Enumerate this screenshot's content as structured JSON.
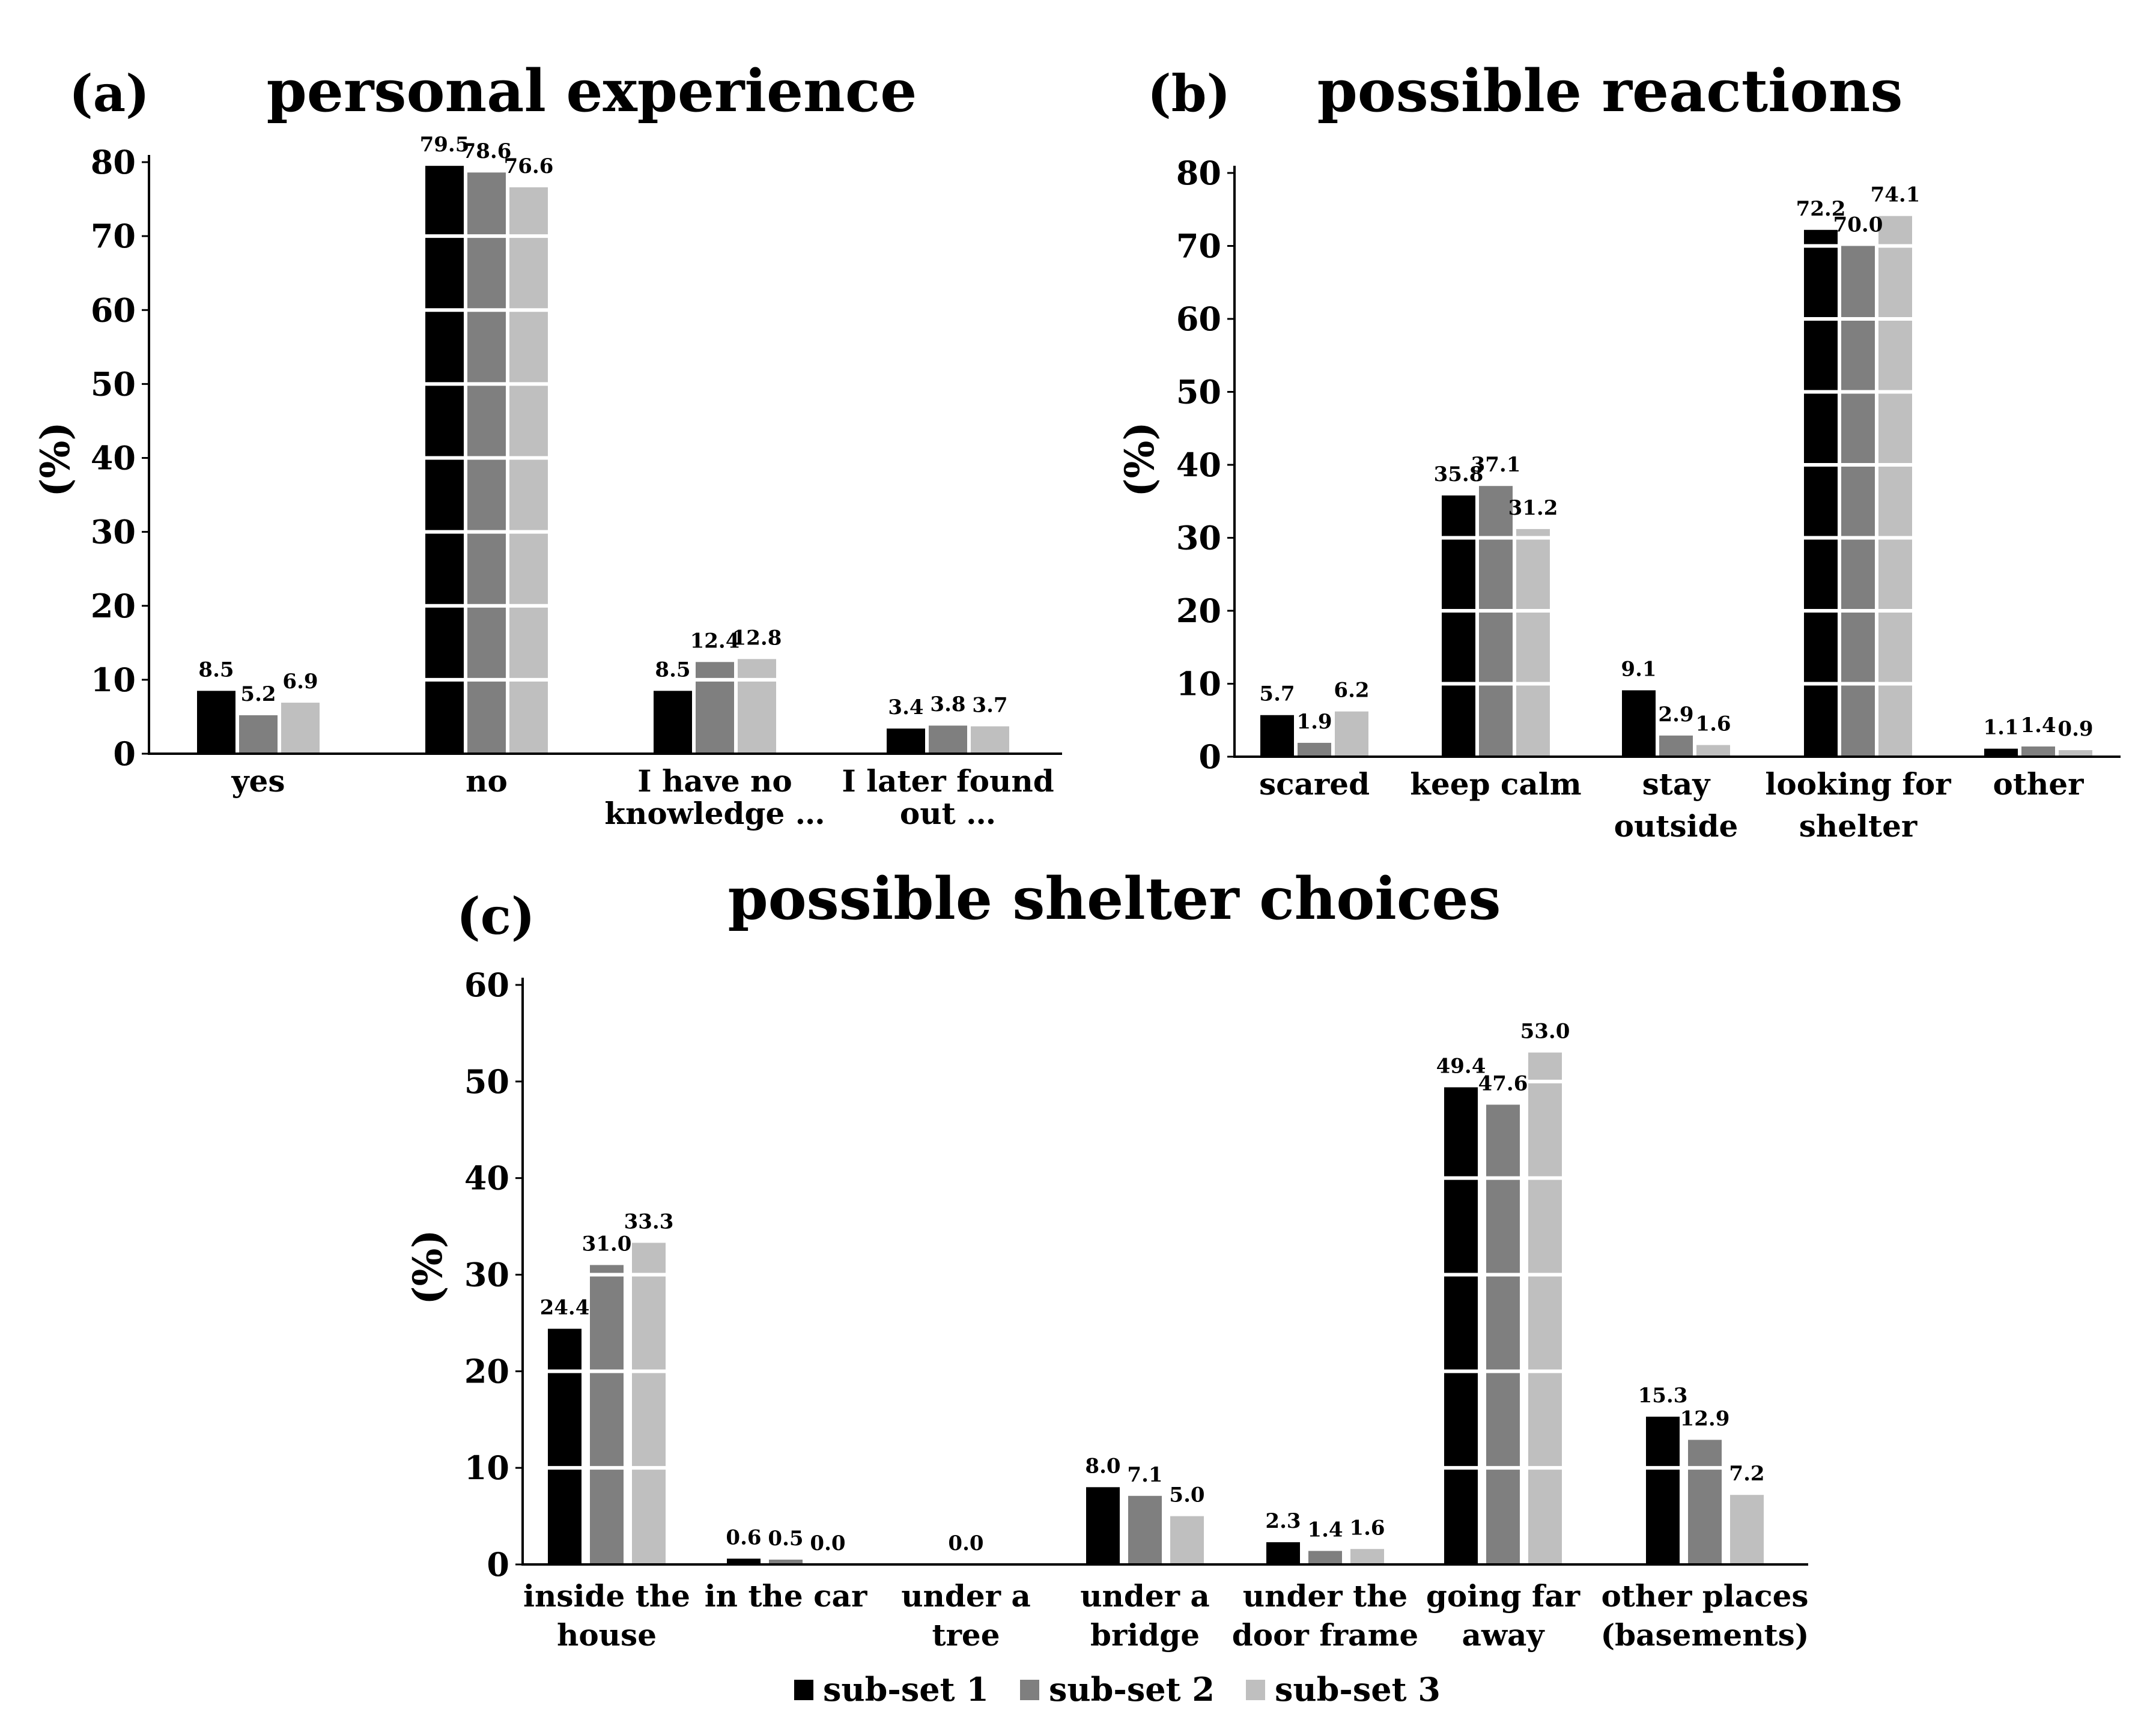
{
  "chart_data": [
    {
      "type": "bar",
      "panel": "(a)",
      "title": "personal experience",
      "ylabel": "(%)",
      "ylim": [
        0,
        80
      ],
      "yticks": [
        "0",
        "10",
        "20",
        "30",
        "40",
        "50",
        "60",
        "70",
        "80"
      ],
      "grid": false,
      "categories": [
        [
          "yes"
        ],
        [
          "no"
        ],
        [
          "I have no",
          "knowledge …"
        ],
        [
          "I later found",
          "out …"
        ]
      ],
      "series": [
        {
          "name": "sub-set 1",
          "color": "#000000",
          "values": [
            8.5,
            79.5,
            8.5,
            3.4
          ],
          "labels": [
            "8.5",
            "79.5",
            "8.5",
            "3.4"
          ]
        },
        {
          "name": "sub-set 2",
          "color": "#7f7f7f",
          "values": [
            5.2,
            78.6,
            12.4,
            3.8
          ],
          "labels": [
            "5.2",
            "78.6",
            "12.4",
            "3.8"
          ]
        },
        {
          "name": "sub-set 3",
          "color": "#bfbfbf",
          "values": [
            6.9,
            76.6,
            12.8,
            3.7
          ],
          "labels": [
            "6.9",
            "76.6",
            "12.8",
            "3.7"
          ]
        }
      ]
    },
    {
      "type": "bar",
      "panel": "(b)",
      "title": "possible reactions",
      "ylabel": "(%)",
      "ylim": [
        0,
        80
      ],
      "yticks": [
        "0",
        "10",
        "20",
        "30",
        "40",
        "50",
        "60",
        "70",
        "80"
      ],
      "grid": false,
      "categories": [
        [
          "scared"
        ],
        [
          "keep calm"
        ],
        [
          "stay",
          "outside"
        ],
        [
          "looking for",
          "shelter"
        ],
        [
          "other"
        ]
      ],
      "series": [
        {
          "name": "sub-set 1",
          "color": "#000000",
          "values": [
            5.7,
            35.8,
            9.1,
            72.2,
            1.1
          ],
          "labels": [
            "5.7",
            "35.8",
            "9.1",
            "72.2",
            "1.1"
          ]
        },
        {
          "name": "sub-set 2",
          "color": "#7f7f7f",
          "values": [
            1.9,
            37.1,
            2.9,
            70.0,
            1.4
          ],
          "labels": [
            "1.9",
            "37.1",
            "2.9",
            "70.0",
            "1.4"
          ]
        },
        {
          "name": "sub-set 3",
          "color": "#bfbfbf",
          "values": [
            6.2,
            31.2,
            1.6,
            74.1,
            0.9
          ],
          "labels": [
            "6.2",
            "31.2",
            "1.6",
            "74.1",
            "0.9"
          ]
        }
      ]
    },
    {
      "type": "bar",
      "panel": "(c)",
      "title": "possible shelter choices",
      "ylabel": "(%)",
      "ylim": [
        0,
        60
      ],
      "yticks": [
        "0",
        "10",
        "20",
        "30",
        "40",
        "50",
        "60"
      ],
      "grid": false,
      "categories": [
        [
          "inside the",
          "house"
        ],
        [
          "in the car"
        ],
        [
          "under a",
          "tree"
        ],
        [
          "under a",
          "bridge"
        ],
        [
          "under the",
          "door frame"
        ],
        [
          "going far",
          "away"
        ],
        [
          "other places",
          "(basements)"
        ]
      ],
      "series": [
        {
          "name": "sub-set 1",
          "color": "#000000",
          "values": [
            24.4,
            0.6,
            null,
            8.0,
            2.3,
            49.4,
            15.3
          ],
          "labels": [
            "24.4",
            "0.6",
            null,
            "8.0",
            "2.3",
            "49.4",
            "15.3"
          ]
        },
        {
          "name": "sub-set 2",
          "color": "#7f7f7f",
          "values": [
            31.0,
            0.5,
            0.0,
            7.1,
            1.4,
            47.6,
            12.9
          ],
          "labels": [
            "31.0",
            "0.5",
            "0.0",
            "7.1",
            "1.4",
            "47.6",
            "12.9"
          ]
        },
        {
          "name": "sub-set 3",
          "color": "#bfbfbf",
          "values": [
            33.3,
            0.0,
            null,
            5.0,
            1.6,
            53.0,
            7.2
          ],
          "labels": [
            "33.3",
            "0.0",
            null,
            "5.0",
            "1.6",
            "53.0",
            "7.2"
          ]
        }
      ]
    }
  ],
  "legend": {
    "placement": "bottom-center",
    "items": [
      {
        "label": "sub-set 1",
        "color": "#000000"
      },
      {
        "label": "sub-set 2",
        "color": "#7f7f7f"
      },
      {
        "label": "sub-set 3",
        "color": "#bfbfbf"
      }
    ]
  }
}
